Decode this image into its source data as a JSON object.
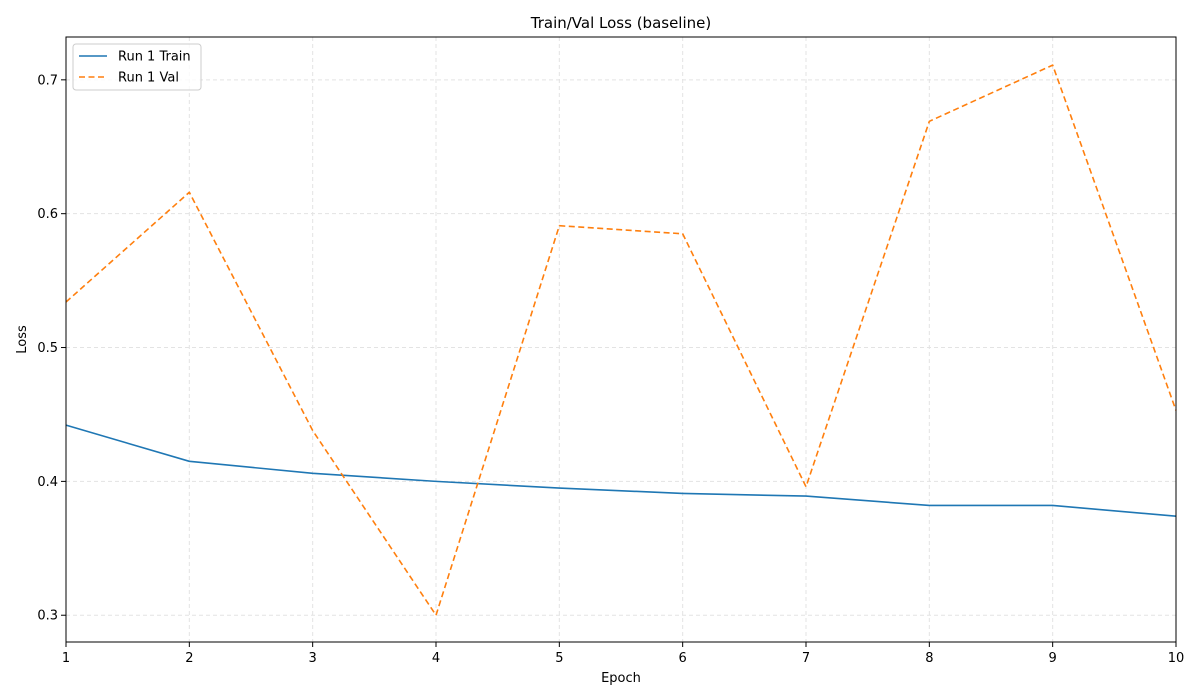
{
  "chart_data": {
    "type": "line",
    "title": "Train/Val Loss (baseline)",
    "xlabel": "Epoch",
    "ylabel": "Loss",
    "xlim": [
      1,
      10
    ],
    "ylim": [
      0.28,
      0.732
    ],
    "x": [
      1,
      2,
      3,
      4,
      5,
      6,
      7,
      8,
      9,
      10
    ],
    "x_ticks": [
      1,
      2,
      3,
      4,
      5,
      6,
      7,
      8,
      9,
      10
    ],
    "y_ticks": [
      0.3,
      0.4,
      0.5,
      0.6,
      0.7
    ],
    "y_tick_labels": [
      "0.3",
      "0.4",
      "0.5",
      "0.6",
      "0.7"
    ],
    "grid": true,
    "legend_position": "top-left",
    "series": [
      {
        "name": "Run 1 Train",
        "color": "#1f77b4",
        "style": "solid",
        "values": [
          0.442,
          0.415,
          0.406,
          0.4,
          0.395,
          0.391,
          0.389,
          0.382,
          0.382,
          0.374
        ]
      },
      {
        "name": "Run 1 Val",
        "color": "#ff7f0e",
        "style": "dashed",
        "values": [
          0.534,
          0.616,
          0.438,
          0.3,
          0.591,
          0.585,
          0.396,
          0.669,
          0.711,
          0.453
        ]
      }
    ]
  }
}
